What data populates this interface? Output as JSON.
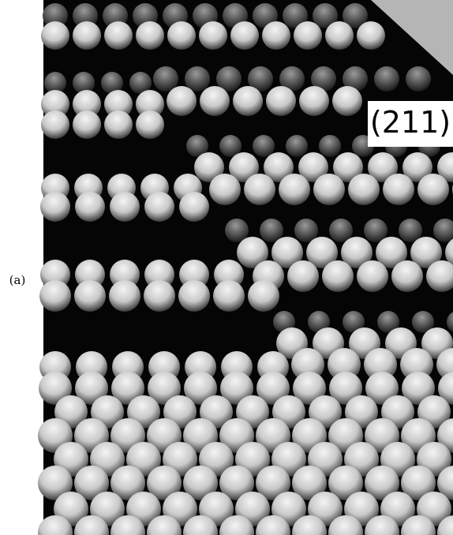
{
  "panel_label": "(a)",
  "surface_label": "(211)"
}
